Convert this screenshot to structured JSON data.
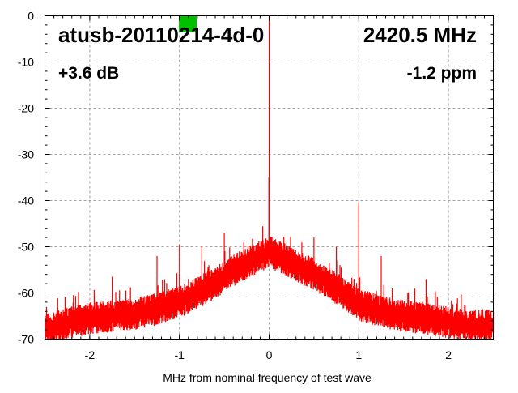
{
  "chart_data": {
    "type": "line",
    "title": "atusb-20110214-4d-0",
    "frequency_label": "2420.5 MHz",
    "gain_label": "+3.6 dB",
    "offset_label": "-1.2 ppm",
    "xlabel": "MHz from nominal frequency of test wave",
    "ylabel": "",
    "xlim": [
      -2.5,
      2.5
    ],
    "ylim": [
      -70,
      0
    ],
    "xticks": [
      -2,
      -1,
      0,
      1,
      2
    ],
    "xtick_labels": [
      "-2",
      "-1",
      "0",
      "1",
      "2"
    ],
    "yticks": [
      0,
      -10,
      -20,
      -30,
      -40,
      -50,
      -60,
      -70
    ],
    "ytick_labels": [
      "0",
      "-10",
      "-20",
      "-30",
      "-40",
      "-50",
      "-60",
      "-70"
    ],
    "grid": true,
    "series_color": "#ff0000",
    "status_marker_color": "#00c000",
    "noise_floor": {
      "x": [
        -2.5,
        -2.25,
        -2.0,
        -1.75,
        -1.5,
        -1.25,
        -1.0,
        -0.75,
        -0.5,
        -0.25,
        0.0,
        0.25,
        0.5,
        0.75,
        1.0,
        1.25,
        1.5,
        1.75,
        2.0,
        2.25,
        2.5
      ],
      "y": [
        -68,
        -66.5,
        -65.5,
        -65,
        -64.5,
        -63.5,
        -62,
        -59.5,
        -56.5,
        -53.5,
        -51,
        -53.5,
        -56,
        -59,
        -62.5,
        -64,
        -65,
        -65.5,
        -66.5,
        -67,
        -67
      ]
    },
    "spikes": [
      {
        "x": -1.75,
        "y": -56.5
      },
      {
        "x": -1.25,
        "y": -52
      },
      {
        "x": -1.0,
        "y": -49.5
      },
      {
        "x": -0.76,
        "y": -58
      },
      {
        "x": -0.75,
        "y": -50
      },
      {
        "x": -0.5,
        "y": -47
      },
      {
        "x": 0.0,
        "y": 0
      },
      {
        "x": -0.003,
        "y": -35
      },
      {
        "x": 0.5,
        "y": -48
      },
      {
        "x": 0.75,
        "y": -50
      },
      {
        "x": 0.94,
        "y": -58.5
      },
      {
        "x": 1.0,
        "y": -40.5
      },
      {
        "x": 1.25,
        "y": -52
      },
      {
        "x": 1.75,
        "y": -57
      }
    ]
  }
}
